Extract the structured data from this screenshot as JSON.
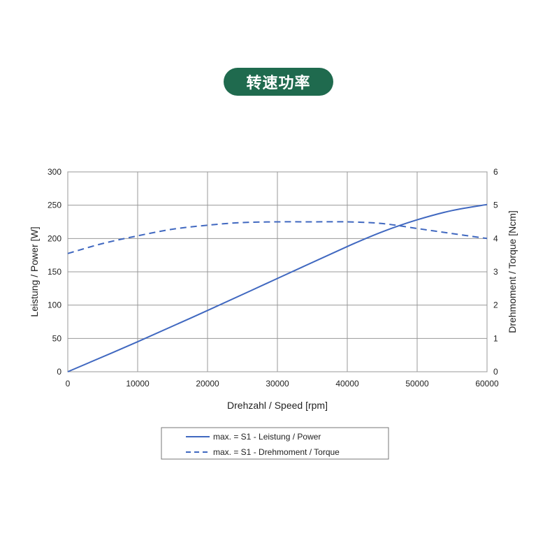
{
  "header": {
    "badge_label": "转速功率"
  },
  "colors": {
    "badge_bg": "#1f6a4e",
    "series": "#4068c0",
    "grid": "#999999"
  },
  "chart_data": {
    "type": "line",
    "title": "",
    "xlabel": "Drehzahl / Speed [rpm]",
    "ylabel_left": "Leistung / Power [W]",
    "ylabel_right": "Drehmoment / Torque [Ncm]",
    "xlim": [
      0,
      60000
    ],
    "ylim_left": [
      0,
      300
    ],
    "ylim_right": [
      0,
      6
    ],
    "x_ticks": [
      "0",
      "10000",
      "20000",
      "30000",
      "40000",
      "50000",
      "60000"
    ],
    "y_left_ticks": [
      "0",
      "50",
      "100",
      "150",
      "200",
      "250",
      "300"
    ],
    "y_right_ticks": [
      "0",
      "1",
      "2",
      "3",
      "4",
      "5",
      "6"
    ],
    "grid": true,
    "legend_position": "bottom",
    "series": [
      {
        "name": "max. = S1 - Leistung / Power",
        "axis": "left",
        "style": "solid",
        "x": [
          0,
          10000,
          20000,
          30000,
          40000,
          45000,
          50000,
          55000,
          60000
        ],
        "y": [
          0,
          45,
          92,
          140,
          188,
          210,
          228,
          242,
          251
        ]
      },
      {
        "name": "max. = S1 - Drehmoment / Torque",
        "axis": "right",
        "style": "dashed",
        "x": [
          0,
          5000,
          10000,
          15000,
          20000,
          25000,
          30000,
          35000,
          40000,
          45000,
          50000,
          55000,
          60000
        ],
        "y": [
          3.55,
          3.85,
          4.08,
          4.28,
          4.4,
          4.48,
          4.5,
          4.5,
          4.5,
          4.45,
          4.3,
          4.15,
          4.0
        ]
      }
    ]
  }
}
